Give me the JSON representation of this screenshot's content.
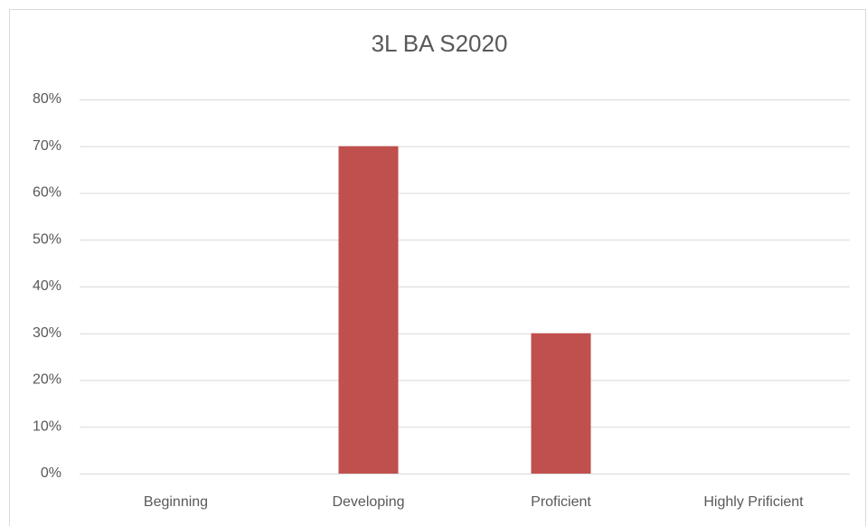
{
  "chart_data": {
    "type": "bar",
    "title": "3L BA S2020",
    "categories": [
      "Beginning",
      "Developing",
      "Proficient",
      "Highly Prificient"
    ],
    "values": [
      0,
      70,
      30,
      0
    ],
    "color": "#c0504d",
    "ylim": [
      0,
      80
    ],
    "yticks": [
      {
        "value": 0,
        "label": "0%"
      },
      {
        "value": 10,
        "label": "10%"
      },
      {
        "value": 20,
        "label": "20%"
      },
      {
        "value": 30,
        "label": "30%"
      },
      {
        "value": 40,
        "label": "40%"
      },
      {
        "value": 50,
        "label": "50%"
      },
      {
        "value": 60,
        "label": "60%"
      },
      {
        "value": 70,
        "label": "70%"
      },
      {
        "value": 80,
        "label": "80%"
      }
    ],
    "grid": true
  }
}
